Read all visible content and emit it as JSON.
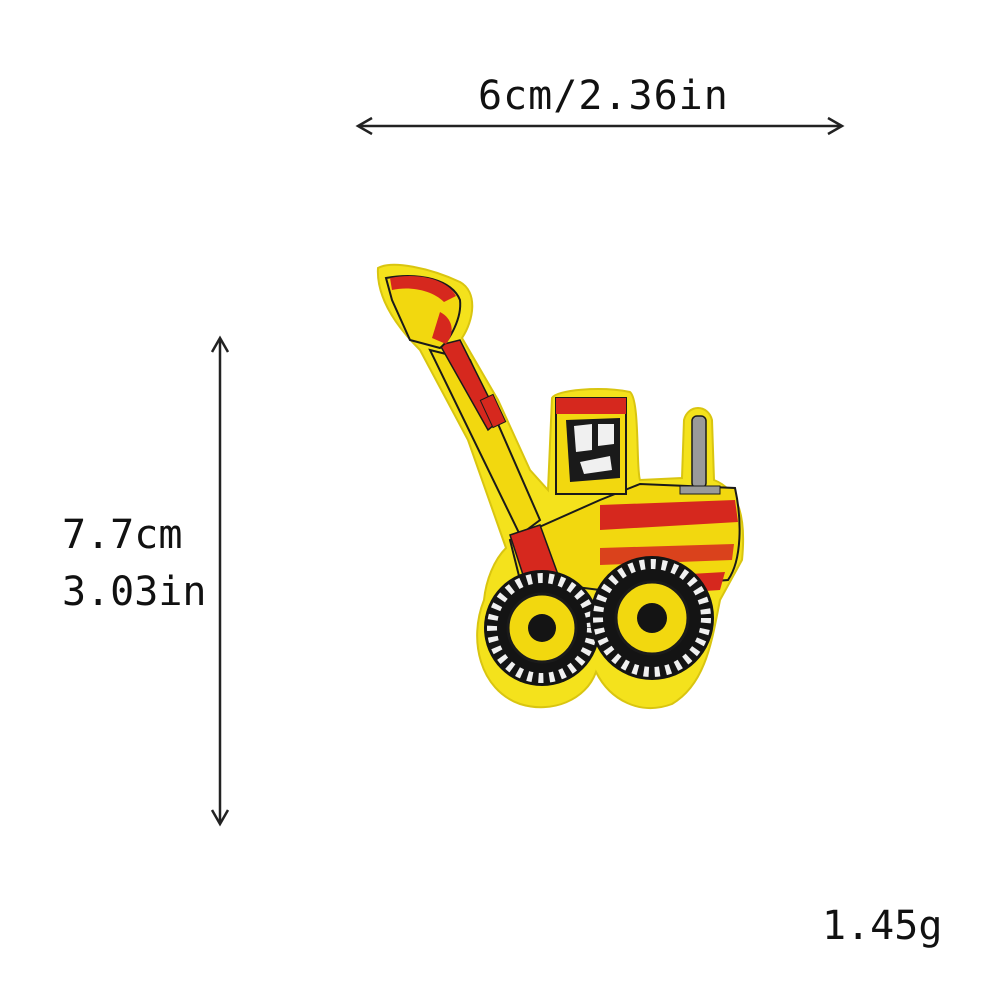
{
  "dimensions": {
    "width_label": "6cm/2.36in",
    "height_label_cm": "7.7cm",
    "height_label_in": "3.03in",
    "weight_label": "1.45g"
  },
  "product": {
    "icon": "excavator-patch-icon",
    "colors": {
      "patch_border": "#f4e21c",
      "body_yellow": "#f2d80f",
      "accent_red": "#d6281e",
      "tire_black": "#141414",
      "tire_white": "#f0f0f0",
      "chrome_gray": "#9a9a9a"
    }
  }
}
